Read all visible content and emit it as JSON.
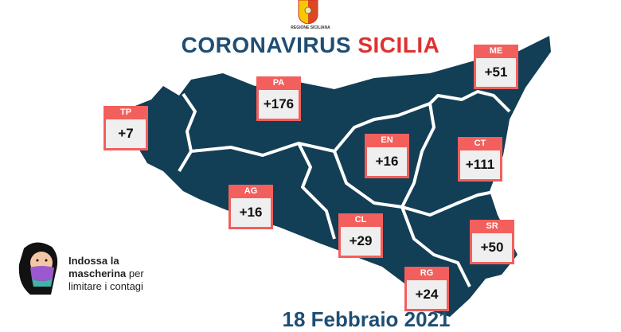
{
  "header": {
    "logo_text": "REGIONE SICILIANA",
    "title_main": "CORONAVIRUS",
    "title_accent": "SICILIA"
  },
  "colors": {
    "title_blue": "#1f4e74",
    "accent_red": "#e03131",
    "badge_red": "#f25f5c",
    "map_blue": "#123e56"
  },
  "provinces": [
    {
      "code": "TP",
      "value": "+7"
    },
    {
      "code": "PA",
      "value": "+176"
    },
    {
      "code": "ME",
      "value": "+51"
    },
    {
      "code": "EN",
      "value": "+16"
    },
    {
      "code": "CT",
      "value": "+111"
    },
    {
      "code": "AG",
      "value": "+16"
    },
    {
      "code": "CL",
      "value": "+29"
    },
    {
      "code": "SR",
      "value": "+50"
    },
    {
      "code": "RG",
      "value": "+24"
    }
  ],
  "tip": {
    "bold": "Indossa la mascherina",
    "rest": "per limitare i contagi"
  },
  "date": "18 Febbraio 2021"
}
